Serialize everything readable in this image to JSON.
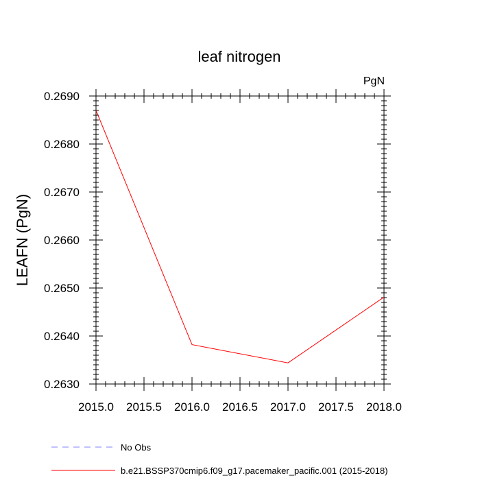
{
  "chart_data": {
    "type": "line",
    "title": "leaf nitrogen",
    "units_label": "PgN",
    "ylabel": "LEAFN  (PgN)",
    "xlabel": "",
    "xlim": [
      2015.0,
      2018.0
    ],
    "ylim": [
      0.263,
      0.269
    ],
    "x_ticks": [
      2015.0,
      2015.5,
      2016.0,
      2016.5,
      2017.0,
      2017.5,
      2018.0
    ],
    "x_tick_labels": [
      "2015.0",
      "2015.5",
      "2016.0",
      "2016.5",
      "2017.0",
      "2017.5",
      "2018.0"
    ],
    "y_ticks": [
      0.263,
      0.264,
      0.265,
      0.266,
      0.267,
      0.268,
      0.269
    ],
    "y_tick_labels": [
      "0.2630",
      "0.2640",
      "0.2650",
      "0.2660",
      "0.2670",
      "0.2680",
      "0.2690"
    ],
    "grid": false,
    "legend_placement": "bottom-left",
    "series": [
      {
        "name": "b.e21.BSSP370cmip6.f09_g17.pacemaker_pacific.001 (2015-2018)",
        "color": "#ff0000",
        "dash": "solid",
        "x": [
          2015.0,
          2016.0,
          2017.0,
          2018.0
        ],
        "y": [
          0.2687,
          0.26382,
          0.26344,
          0.26481
        ]
      }
    ],
    "legend": [
      {
        "label": "No Obs",
        "color": "#8080ff",
        "dash": "dashed"
      },
      {
        "label": "b.e21.BSSP370cmip6.f09_g17.pacemaker_pacific.001 (2015-2018)",
        "color": "#ff0000",
        "dash": "solid"
      }
    ]
  }
}
